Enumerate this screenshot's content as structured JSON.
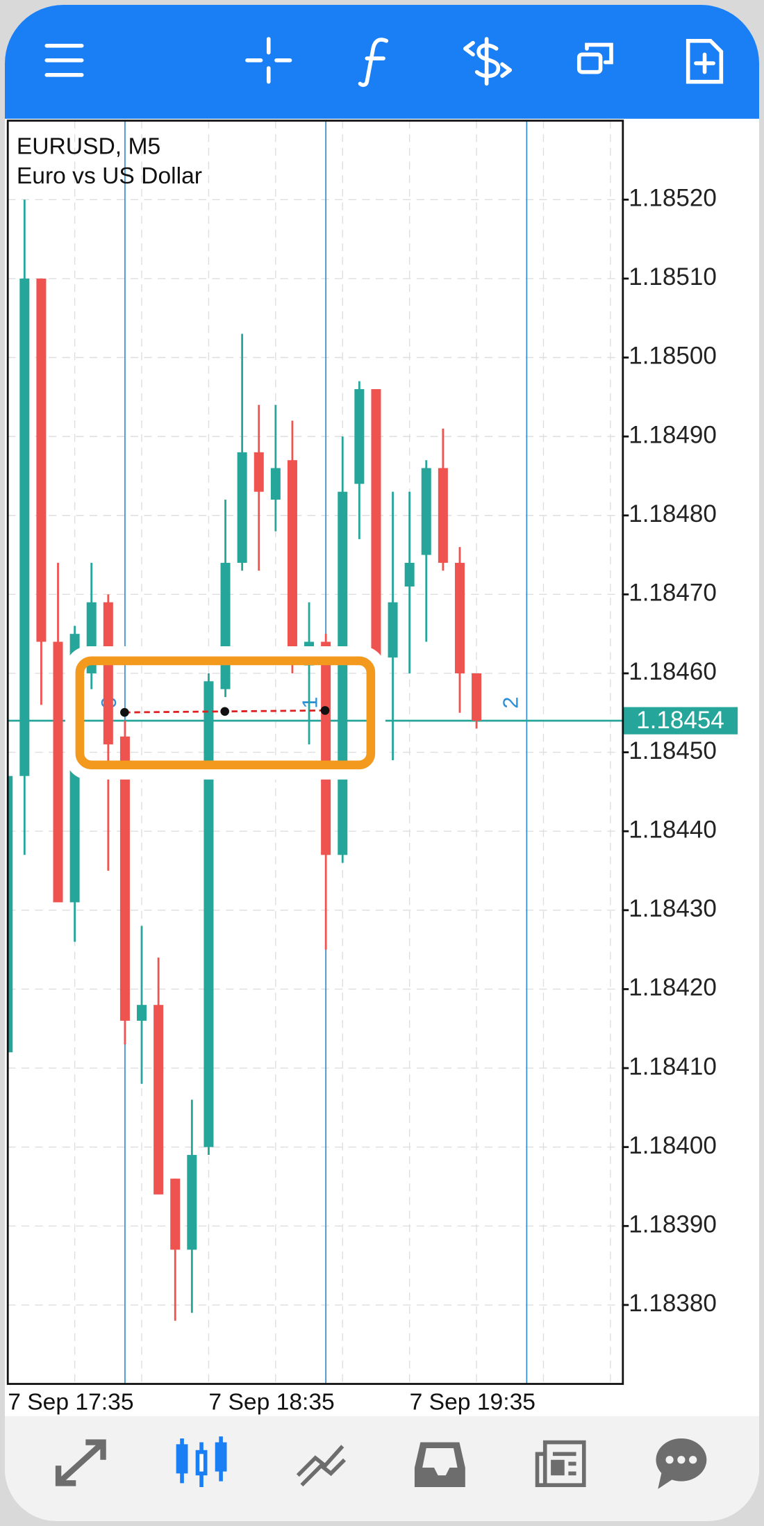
{
  "chart_data": {
    "type": "candlestick",
    "title": "EURUSD, M5",
    "subtitle": "Euro vs US Dollar",
    "categories": [
      "7 Sep 17:35",
      null,
      null,
      null,
      null,
      null,
      null,
      null,
      null,
      null,
      null,
      null,
      "7 Sep 18:35",
      null,
      null,
      null,
      null,
      null,
      null,
      null,
      null,
      null,
      null,
      null,
      "7 Sep 19:35",
      null,
      null,
      null,
      null
    ],
    "open": [
      1.18412,
      1.18447,
      1.1851,
      1.18464,
      1.18431,
      1.1846,
      1.18469,
      1.18452,
      1.18416,
      1.18418,
      1.18396,
      1.18387,
      1.184,
      1.18458,
      1.18474,
      1.18488,
      1.18482,
      1.18487,
      1.18461,
      1.18464,
      1.18437,
      1.18484,
      1.18496,
      1.18462,
      1.18471,
      1.18475,
      1.18486,
      1.18474,
      1.1846
    ],
    "high": [
      1.18447,
      1.1852,
      1.1851,
      1.18474,
      1.18466,
      1.18474,
      1.1847,
      1.18454,
      1.18428,
      1.18424,
      1.18396,
      1.18406,
      1.1846,
      1.18482,
      1.18503,
      1.18494,
      1.18494,
      1.18492,
      1.18469,
      1.18465,
      1.1849,
      1.18497,
      1.18496,
      1.18483,
      1.18483,
      1.18487,
      1.18491,
      1.18476,
      1.1846
    ],
    "low": [
      1.18412,
      1.18437,
      1.18456,
      1.18431,
      1.18426,
      1.18458,
      1.18435,
      1.18413,
      1.18408,
      1.18394,
      1.18378,
      1.18379,
      1.18399,
      1.18457,
      1.18473,
      1.18473,
      1.18478,
      1.1846,
      1.18451,
      1.18425,
      1.18436,
      1.18477,
      1.18454,
      1.18449,
      1.1846,
      1.18464,
      1.18473,
      1.18455,
      1.18453
    ],
    "close": [
      1.18447,
      1.1851,
      1.18464,
      1.18431,
      1.18465,
      1.18469,
      1.18451,
      1.18416,
      1.18418,
      1.18394,
      1.18387,
      1.18399,
      1.18459,
      1.18474,
      1.18488,
      1.18483,
      1.18486,
      1.18463,
      1.18464,
      1.18437,
      1.18483,
      1.18496,
      1.18454,
      1.18469,
      1.18474,
      1.18486,
      1.18474,
      1.1846,
      1.18454
    ],
    "up_color": "#26a69a",
    "down_color": "#ef5350",
    "ylim": [
      1.1837,
      1.1853
    ],
    "yticks": [
      {
        "value": 1.1838,
        "label": "1.18380"
      },
      {
        "value": 1.1839,
        "label": "1.18390"
      },
      {
        "value": 1.184,
        "label": "1.18400"
      },
      {
        "value": 1.1841,
        "label": "1.18410"
      },
      {
        "value": 1.1842,
        "label": "1.18420"
      },
      {
        "value": 1.1843,
        "label": "1.18430"
      },
      {
        "value": 1.1844,
        "label": "1.18440"
      },
      {
        "value": 1.1845,
        "label": "1.18450"
      },
      {
        "value": 1.1846,
        "label": "1.18460"
      },
      {
        "value": 1.1847,
        "label": "1.18470"
      },
      {
        "value": 1.1848,
        "label": "1.18480"
      },
      {
        "value": 1.1849,
        "label": "1.18490"
      },
      {
        "value": 1.185,
        "label": "1.18500"
      },
      {
        "value": 1.1851,
        "label": "1.18510"
      },
      {
        "value": 1.1852,
        "label": "1.18520"
      }
    ],
    "grid": true,
    "current_price": 1.18454,
    "current_price_color": "#26a69a",
    "time_zone_labels": [
      "0",
      "1",
      "2"
    ],
    "time_zone_color": "#2a8fd6"
  }
}
